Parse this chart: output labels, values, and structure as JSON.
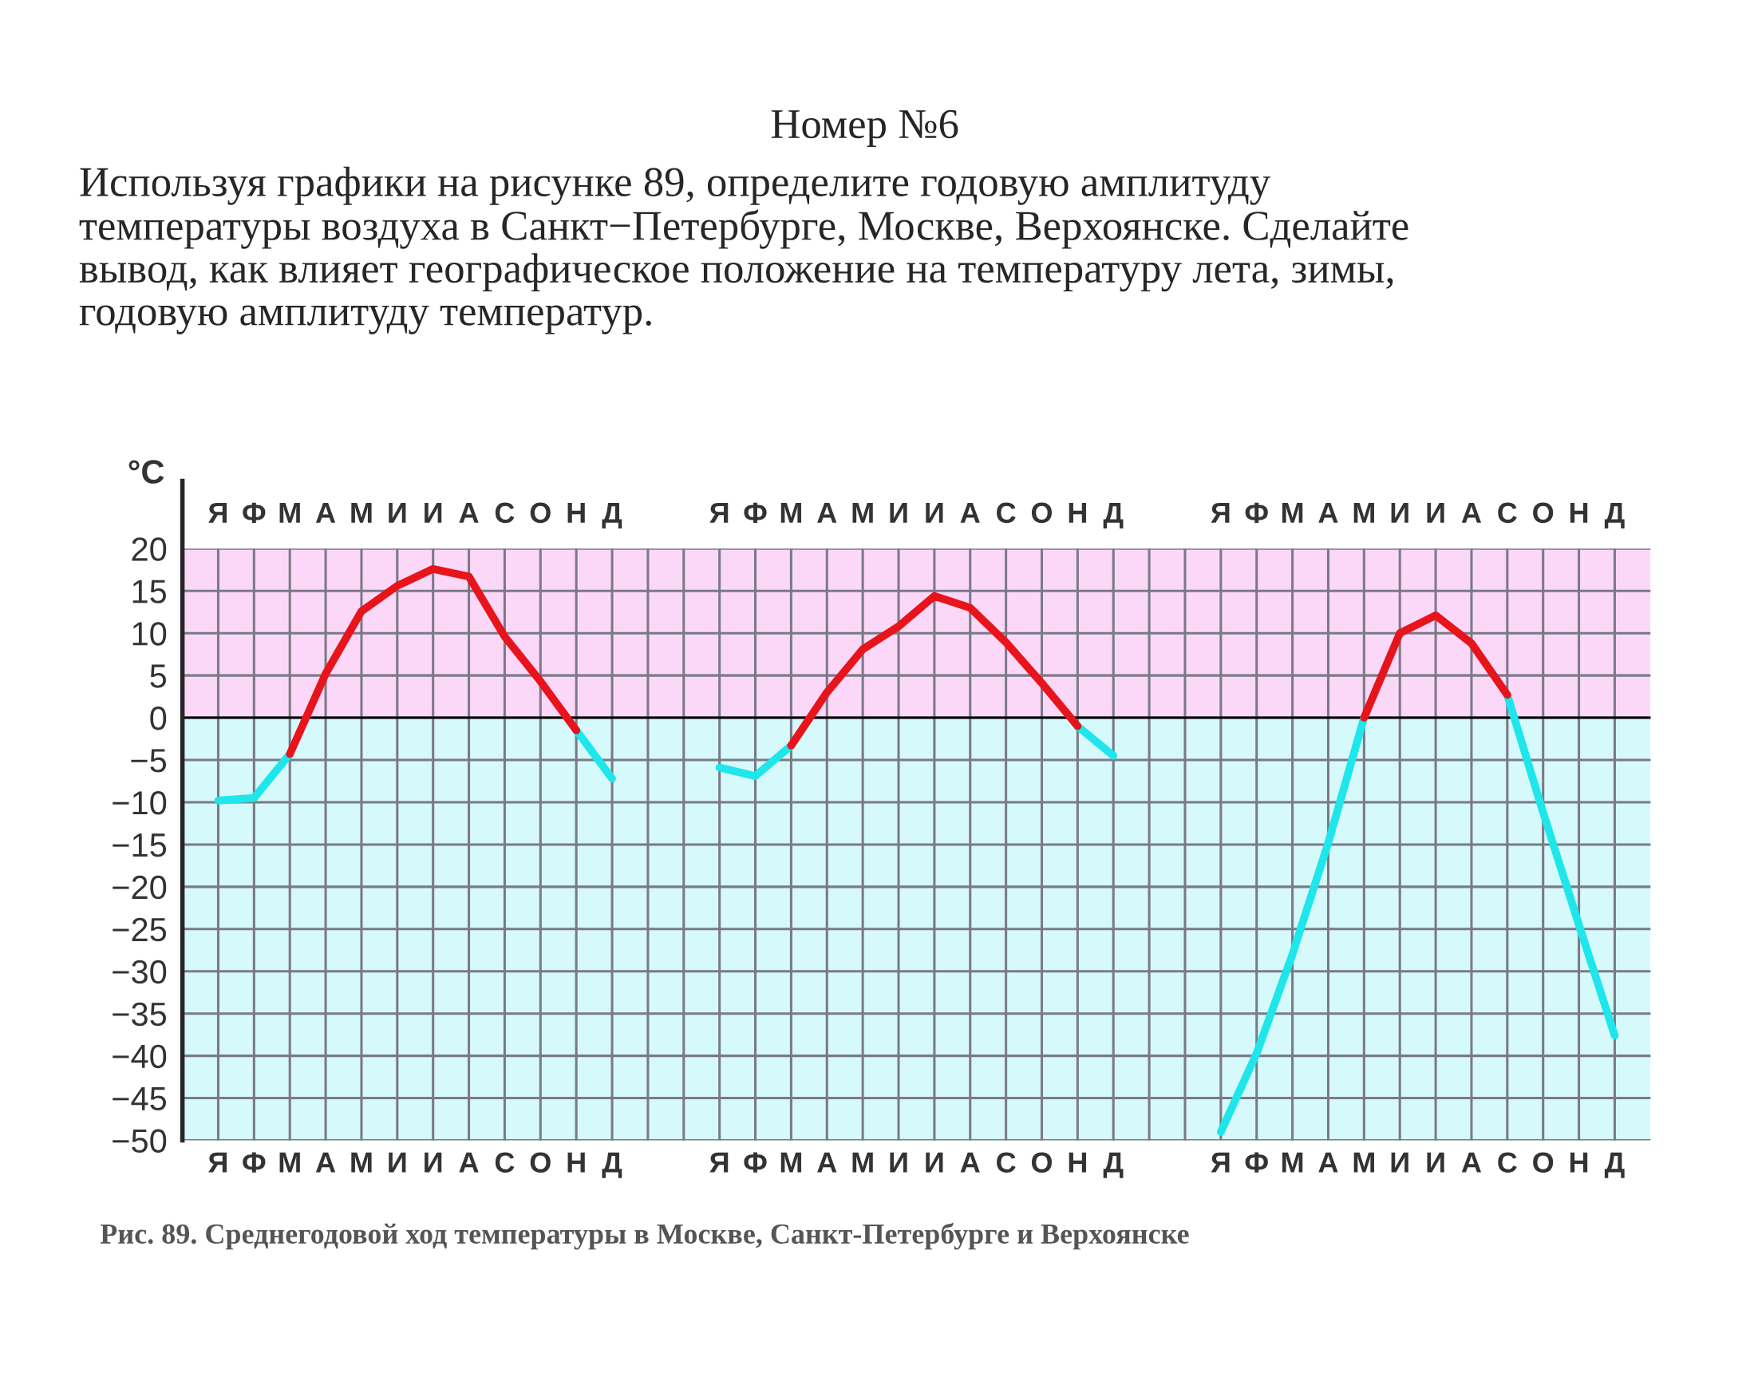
{
  "chart_data": {
    "type": "line",
    "title": "Номер №6",
    "subtitle": "Используя графики на рисунке 89, определите годовую амплитуду\nтемпературы воздуха в Санкт−Петербурге, Москве, Верхоянске. Сделайте\nвывод, как влияет географическое положение на температуру лета, зимы,\nгодовую амплитуду температур.",
    "ylabel": "°C",
    "categories": [
      "Я",
      "Ф",
      "М",
      "А",
      "М",
      "И",
      "И",
      "А",
      "С",
      "О",
      "Н",
      "Д",
      null,
      null,
      "Я",
      "Ф",
      "М",
      "А",
      "М",
      "И",
      "И",
      "А",
      "С",
      "О",
      "Н",
      "Д",
      null,
      null,
      "Я",
      "Ф",
      "М",
      "А",
      "М",
      "И",
      "И",
      "А",
      "С",
      "О",
      "Н",
      "Д"
    ],
    "series": [
      {
        "color": "#1ee6ea",
        "values": [
          -9.8,
          -9.5,
          -4.3,
          null,
          null,
          null,
          null,
          null,
          null,
          null,
          -1.5,
          -7.2,
          null,
          null,
          null,
          null,
          null,
          null,
          null,
          null,
          null,
          null,
          null,
          null,
          null,
          null,
          null,
          null,
          null,
          null,
          null,
          null,
          null,
          null,
          null,
          null,
          null,
          null,
          null,
          null
        ]
      },
      {
        "color": "#e8141c",
        "values": [
          null,
          null,
          -4.3,
          5.2,
          12.6,
          15.6,
          17.6,
          16.7,
          9.6,
          4.3,
          -1.5,
          null,
          null,
          null,
          null,
          null,
          null,
          null,
          null,
          null,
          null,
          null,
          null,
          null,
          null,
          null,
          null,
          null,
          null,
          null,
          null,
          null,
          null,
          null,
          null,
          null,
          null,
          null,
          null,
          null
        ]
      },
      {
        "color": "#1ee6ea",
        "values": [
          null,
          null,
          null,
          null,
          null,
          null,
          null,
          null,
          null,
          null,
          null,
          null,
          null,
          null,
          -5.9,
          -6.9,
          -3.3,
          null,
          null,
          null,
          null,
          null,
          null,
          null,
          -1.0,
          -4.5,
          null,
          null,
          null,
          null,
          null,
          null,
          null,
          null,
          null,
          null,
          null,
          null,
          null,
          null
        ]
      },
      {
        "color": "#e8141c",
        "values": [
          null,
          null,
          null,
          null,
          null,
          null,
          null,
          null,
          null,
          null,
          null,
          null,
          null,
          null,
          null,
          null,
          -3.3,
          3.0,
          8.1,
          10.8,
          14.4,
          13.0,
          8.9,
          4.1,
          -1.0,
          null,
          null,
          null,
          null,
          null,
          null,
          null,
          null,
          null,
          null,
          null,
          null,
          null,
          null,
          null
        ]
      },
      {
        "color": "#1ee6ea",
        "values": [
          null,
          null,
          null,
          null,
          null,
          null,
          null,
          null,
          null,
          null,
          null,
          null,
          null,
          null,
          null,
          null,
          null,
          null,
          null,
          null,
          null,
          null,
          null,
          null,
          null,
          null,
          null,
          null,
          -49,
          -39.7,
          -28,
          -14.8,
          0,
          null,
          null,
          null,
          2.7,
          -11.2,
          -24.5,
          -37.6
        ]
      },
      {
        "color": "#e8141c",
        "values": [
          null,
          null,
          null,
          null,
          null,
          null,
          null,
          null,
          null,
          null,
          null,
          null,
          null,
          null,
          null,
          null,
          null,
          null,
          null,
          null,
          null,
          null,
          null,
          null,
          null,
          null,
          null,
          null,
          null,
          null,
          null,
          null,
          0,
          10,
          12.1,
          8.8,
          2.7,
          null,
          null,
          null
        ]
      }
    ],
    "ylim": [
      -50,
      20
    ],
    "yticks": [
      {
        "value": -50,
        "label": "−50"
      },
      {
        "value": -45,
        "label": "−45"
      },
      {
        "value": -40,
        "label": "−40"
      },
      {
        "value": -35,
        "label": "−35"
      },
      {
        "value": -30,
        "label": "−30"
      },
      {
        "value": -25,
        "label": "−25"
      },
      {
        "value": -20,
        "label": "−20"
      },
      {
        "value": -15,
        "label": "−15"
      },
      {
        "value": -10,
        "label": "−10"
      },
      {
        "value": -5,
        "label": "−5"
      },
      0,
      5,
      10,
      15,
      20
    ],
    "bands": [
      {
        "axis": "y",
        "from": 0,
        "to": 20,
        "color": "#fcd8f8"
      },
      {
        "axis": "y",
        "from": -50,
        "to": 0,
        "color": "#d6f9fb"
      }
    ],
    "ref_lines": [
      {
        "axis": "y",
        "value": 0,
        "color": "#000000"
      }
    ],
    "grid": true,
    "annotations": [
      "Рис. 89. Среднегодовой ход температуры в Москве, Санкт-Петербурге и Верхоянске"
    ]
  }
}
